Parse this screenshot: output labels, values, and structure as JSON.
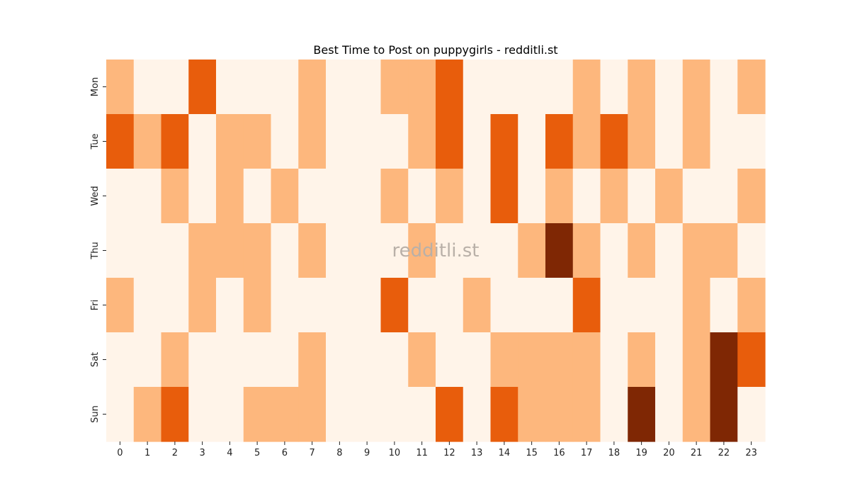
{
  "chart_data": {
    "type": "heatmap",
    "title": "Best Time to Post on puppygirls - redditli.st",
    "watermark": "redditli.st",
    "xlabel": "",
    "ylabel": "",
    "x_categories": [
      "0",
      "1",
      "2",
      "3",
      "4",
      "5",
      "6",
      "7",
      "8",
      "9",
      "10",
      "11",
      "12",
      "13",
      "14",
      "15",
      "16",
      "17",
      "18",
      "19",
      "20",
      "21",
      "22",
      "23"
    ],
    "y_categories": [
      "Mon",
      "Tue",
      "Wed",
      "Thu",
      "Fri",
      "Sat",
      "Sun"
    ],
    "values": [
      [
        1,
        0,
        0,
        2,
        0,
        0,
        0,
        1,
        0,
        0,
        1,
        1,
        2,
        0,
        0,
        0,
        0,
        1,
        0,
        1,
        0,
        1,
        0,
        1
      ],
      [
        2,
        1,
        2,
        0,
        1,
        1,
        0,
        1,
        0,
        0,
        0,
        1,
        2,
        0,
        2,
        0,
        2,
        1,
        2,
        1,
        0,
        1,
        0,
        0
      ],
      [
        0,
        0,
        1,
        0,
        1,
        0,
        1,
        0,
        0,
        0,
        1,
        0,
        1,
        0,
        2,
        0,
        1,
        0,
        1,
        0,
        1,
        0,
        0,
        1
      ],
      [
        0,
        0,
        0,
        1,
        1,
        1,
        0,
        1,
        0,
        0,
        0,
        1,
        0,
        0,
        0,
        1,
        3,
        1,
        0,
        1,
        0,
        1,
        1,
        0
      ],
      [
        1,
        0,
        0,
        1,
        0,
        1,
        0,
        0,
        0,
        0,
        2,
        0,
        0,
        1,
        0,
        0,
        0,
        2,
        0,
        0,
        0,
        1,
        0,
        1
      ],
      [
        0,
        0,
        1,
        0,
        0,
        0,
        0,
        1,
        0,
        0,
        0,
        1,
        0,
        0,
        1,
        1,
        1,
        1,
        0,
        1,
        0,
        1,
        3,
        2
      ],
      [
        0,
        1,
        2,
        0,
        0,
        1,
        1,
        1,
        0,
        0,
        0,
        0,
        2,
        0,
        2,
        1,
        1,
        1,
        0,
        3,
        0,
        1,
        3,
        0
      ]
    ],
    "colormap": [
      "#fff4e9",
      "#fdb77d",
      "#e85d0c",
      "#7f2704"
    ],
    "colorbar": false,
    "grid": false
  }
}
